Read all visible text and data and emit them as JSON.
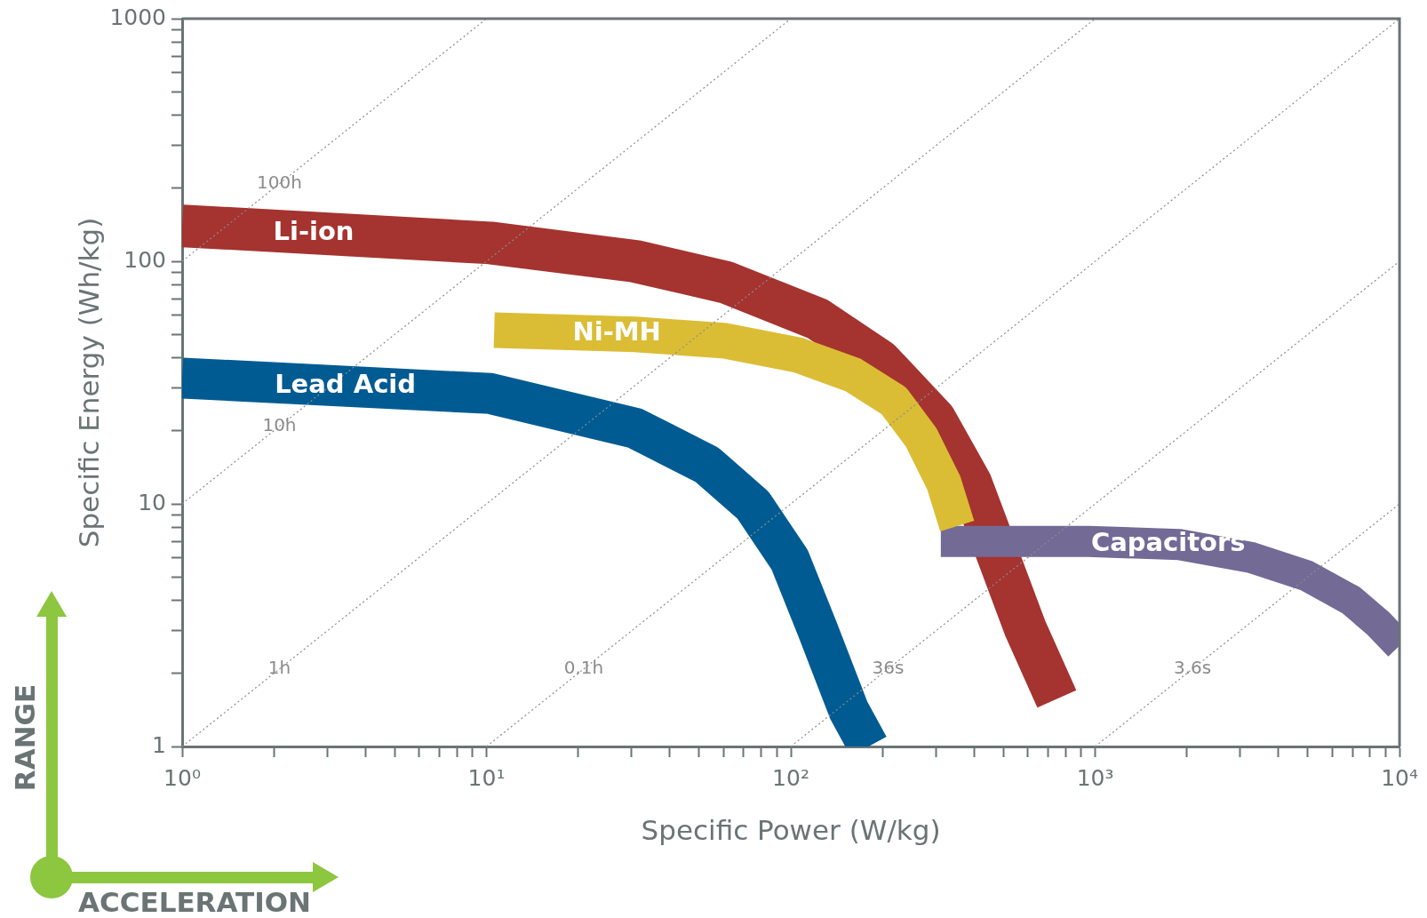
{
  "chart_data": {
    "type": "line",
    "log": "xy",
    "xlabel": "Specific Power (W/kg)",
    "ylabel": "Specific Energy (Wh/kg)",
    "marker": "none",
    "legend": false,
    "xlim": [
      1,
      10000
    ],
    "ylim": [
      1,
      1000
    ],
    "xticks": [
      {
        "value": 1,
        "label": "10⁰"
      },
      {
        "value": 2,
        "label": null
      },
      {
        "value": 3,
        "label": null
      },
      {
        "value": 4,
        "label": null
      },
      {
        "value": 5,
        "label": null
      },
      {
        "value": 6,
        "label": null
      },
      {
        "value": 7,
        "label": null
      },
      {
        "value": 8,
        "label": null
      },
      {
        "value": 9,
        "label": null
      },
      {
        "value": 10,
        "label": "10¹"
      },
      {
        "value": 20,
        "label": null
      },
      {
        "value": 30,
        "label": null
      },
      {
        "value": 40,
        "label": null
      },
      {
        "value": 50,
        "label": null
      },
      {
        "value": 60,
        "label": null
      },
      {
        "value": 70,
        "label": null
      },
      {
        "value": 80,
        "label": null
      },
      {
        "value": 90,
        "label": null
      },
      {
        "value": 100,
        "label": "10²"
      },
      {
        "value": 200,
        "label": null
      },
      {
        "value": 300,
        "label": null
      },
      {
        "value": 400,
        "label": null
      },
      {
        "value": 500,
        "label": null
      },
      {
        "value": 600,
        "label": null
      },
      {
        "value": 700,
        "label": null
      },
      {
        "value": 800,
        "label": null
      },
      {
        "value": 900,
        "label": null
      },
      {
        "value": 1000,
        "label": "10³"
      },
      {
        "value": 2000,
        "label": null
      },
      {
        "value": 3000,
        "label": null
      },
      {
        "value": 4000,
        "label": null
      },
      {
        "value": 5000,
        "label": null
      },
      {
        "value": 6000,
        "label": null
      },
      {
        "value": 7000,
        "label": null
      },
      {
        "value": 8000,
        "label": null
      },
      {
        "value": 9000,
        "label": null
      },
      {
        "value": 10000,
        "label": "10⁴"
      }
    ],
    "yticks": [
      1,
      {
        "value": 2,
        "label": null
      },
      {
        "value": 3,
        "label": null
      },
      {
        "value": 4,
        "label": null
      },
      {
        "value": 5,
        "label": null
      },
      {
        "value": 6,
        "label": null
      },
      {
        "value": 7,
        "label": null
      },
      {
        "value": 8,
        "label": null
      },
      {
        "value": 9,
        "label": null
      },
      10,
      {
        "value": 20,
        "label": null
      },
      {
        "value": 30,
        "label": null
      },
      {
        "value": 40,
        "label": null
      },
      {
        "value": 50,
        "label": null
      },
      {
        "value": 60,
        "label": null
      },
      {
        "value": 70,
        "label": null
      },
      {
        "value": 80,
        "label": null
      },
      {
        "value": 90,
        "label": null
      },
      100,
      {
        "value": 200,
        "label": null
      },
      {
        "value": 300,
        "label": null
      },
      {
        "value": 400,
        "label": null
      },
      {
        "value": 500,
        "label": null
      },
      {
        "value": 600,
        "label": null
      },
      {
        "value": 700,
        "label": null
      },
      {
        "value": 800,
        "label": null
      },
      {
        "value": 900,
        "label": null
      },
      1000
    ],
    "series": [
      {
        "name": "100h",
        "line_style": "dotted",
        "color": "#8c8c8c",
        "x": [
          1,
          10
        ],
        "values": [
          100,
          1000
        ]
      },
      {
        "name": "10h",
        "line_style": "dotted",
        "color": "#8c8c8c",
        "x": [
          1,
          100
        ],
        "values": [
          10,
          1000
        ]
      },
      {
        "name": "1h",
        "line_style": "dotted",
        "color": "#8c8c8c",
        "x": [
          1,
          1000
        ],
        "values": [
          1,
          1000
        ]
      },
      {
        "name": "0.1h",
        "line_style": "dotted",
        "color": "#8c8c8c",
        "x": [
          10,
          10000
        ],
        "values": [
          1,
          1000
        ]
      },
      {
        "name": "36s",
        "line_style": "dotted",
        "color": "#8c8c8c",
        "x": [
          100,
          10000
        ],
        "values": [
          1,
          100
        ]
      },
      {
        "name": "3.6s",
        "line_style": "dotted",
        "color": "#8c8c8c",
        "x": [
          1000,
          10000
        ],
        "values": [
          1,
          10
        ]
      },
      {
        "name": "Lead Acid",
        "color": "#005b92",
        "x": [
          1,
          10.3,
          30.8,
          53,
          75,
          99,
          122,
          155,
          180
        ],
        "values": [
          33,
          28.5,
          20.5,
          14.5,
          9.9,
          5.9,
          3.07,
          1.41,
          1
        ]
      },
      {
        "name": "Ni-MH",
        "color": "#dbbd35",
        "x": [
          10.6,
          30.8,
          61,
          106,
          160,
          218,
          268,
          318,
          352
        ],
        "values": [
          52,
          50,
          47,
          41,
          34,
          26.6,
          18.8,
          12.2,
          8.1
        ]
      },
      {
        "name": "Capacitors",
        "color": "#736a96",
        "x": [
          311,
          951,
          1890,
          3270,
          4930,
          6950,
          8540,
          10000
        ],
        "values": [
          7,
          7,
          6.8,
          6,
          5.07,
          4,
          3.2,
          2.6
        ]
      },
      {
        "name": "Li-ion",
        "color": "#a5332f",
        "x": [
          1,
          10.3,
          30.8,
          61,
          122,
          196,
          297,
          390,
          480,
          589,
          748
        ],
        "values": [
          140,
          119,
          100,
          82,
          58,
          39,
          22.4,
          12.2,
          6.1,
          3.07,
          1.57
        ]
      }
    ],
    "annotations": [
      "RANGE",
      "ACCELERATION"
    ]
  }
}
